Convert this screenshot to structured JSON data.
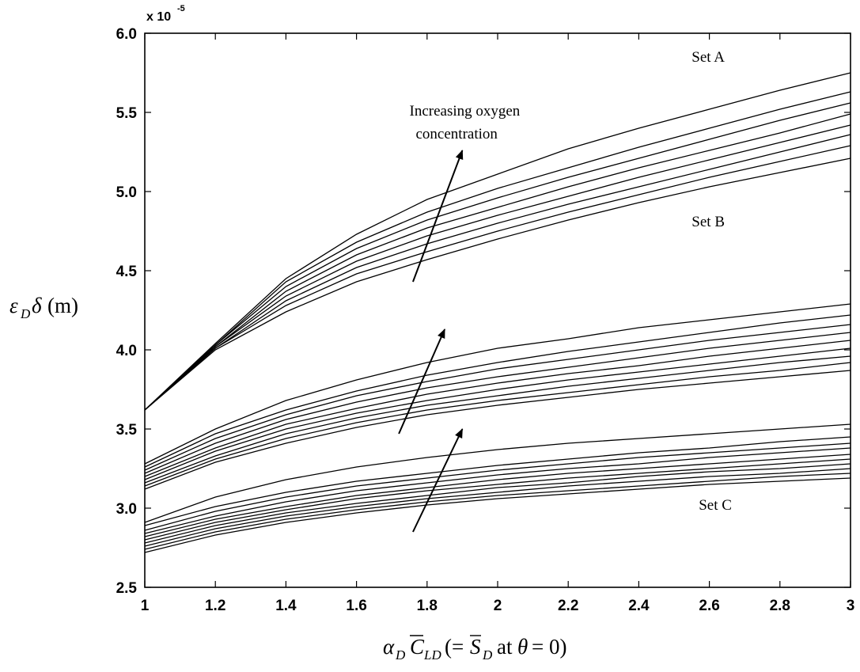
{
  "chart_data": {
    "type": "line",
    "xlim": [
      1,
      3
    ],
    "ylim": [
      2.5,
      6.0
    ],
    "y_scale_exponent": "x 10",
    "y_scale_exponent_power": "-5",
    "xticks": [
      "1",
      "1.2",
      "1.4",
      "1.6",
      "1.8",
      "2",
      "2.2",
      "2.4",
      "2.6",
      "2.8",
      "3"
    ],
    "yticks": [
      "2.5",
      "3.0",
      "3.5",
      "4.0",
      "4.5",
      "5.0",
      "5.5",
      "6.0"
    ],
    "grid": false,
    "legend": "none",
    "xlabel": "α_D C̄_LD (= S̄_D at θ = 0)",
    "ylabel": "ε_D δ (m)",
    "x": [
      1,
      1.2,
      1.4,
      1.6,
      1.8,
      2,
      2.2,
      2.4,
      2.6,
      2.8,
      3
    ],
    "groups": [
      {
        "label": "Set A",
        "series": [
          {
            "values": [
              3.62,
              4.0,
              4.24,
              4.43,
              4.57,
              4.7,
              4.82,
              4.93,
              5.03,
              5.12,
              5.21
            ]
          },
          {
            "values": [
              3.62,
              4.01,
              4.28,
              4.48,
              4.62,
              4.75,
              4.87,
              4.98,
              5.09,
              5.19,
              5.29
            ]
          },
          {
            "values": [
              3.62,
              4.01,
              4.31,
              4.52,
              4.67,
              4.8,
              4.92,
              5.03,
              5.14,
              5.25,
              5.36
            ]
          },
          {
            "values": [
              3.62,
              4.02,
              4.34,
              4.56,
              4.72,
              4.85,
              4.97,
              5.09,
              5.2,
              5.31,
              5.42
            ]
          },
          {
            "values": [
              3.62,
              4.02,
              4.37,
              4.6,
              4.77,
              4.9,
              5.03,
              5.15,
              5.26,
              5.37,
              5.49
            ]
          },
          {
            "values": [
              3.62,
              4.03,
              4.4,
              4.64,
              4.82,
              4.96,
              5.09,
              5.21,
              5.33,
              5.45,
              5.56
            ]
          },
          {
            "values": [
              3.62,
              4.03,
              4.43,
              4.68,
              4.87,
              5.02,
              5.15,
              5.28,
              5.4,
              5.52,
              5.63
            ]
          },
          {
            "values": [
              3.62,
              4.04,
              4.45,
              4.73,
              4.95,
              5.11,
              5.27,
              5.4,
              5.52,
              5.64,
              5.75
            ]
          }
        ]
      },
      {
        "label": "Set B",
        "series": [
          {
            "values": [
              3.12,
              3.29,
              3.41,
              3.51,
              3.59,
              3.65,
              3.7,
              3.75,
              3.79,
              3.83,
              3.87
            ]
          },
          {
            "values": [
              3.14,
              3.31,
              3.44,
              3.54,
              3.62,
              3.68,
              3.73,
              3.78,
              3.83,
              3.87,
              3.92
            ]
          },
          {
            "values": [
              3.16,
              3.33,
              3.47,
              3.57,
              3.65,
              3.71,
              3.77,
              3.82,
              3.87,
              3.92,
              3.96
            ]
          },
          {
            "values": [
              3.18,
              3.36,
              3.5,
              3.6,
              3.68,
              3.75,
              3.81,
              3.86,
              3.91,
              3.96,
              4.01
            ]
          },
          {
            "values": [
              3.2,
              3.38,
              3.53,
              3.63,
              3.72,
              3.79,
              3.85,
              3.9,
              3.96,
              4.01,
              4.06
            ]
          },
          {
            "values": [
              3.22,
              3.41,
              3.56,
              3.67,
              3.76,
              3.83,
              3.89,
              3.95,
              4.01,
              4.06,
              4.11
            ]
          },
          {
            "values": [
              3.24,
              3.44,
              3.59,
              3.71,
              3.8,
              3.88,
              3.94,
              4.0,
              4.06,
              4.11,
              4.16
            ]
          },
          {
            "values": [
              3.26,
              3.47,
              3.62,
              3.74,
              3.84,
              3.92,
              3.99,
              4.05,
              4.11,
              4.17,
              4.22
            ]
          },
          {
            "values": [
              3.28,
              3.5,
              3.68,
              3.81,
              3.92,
              4.01,
              4.07,
              4.14,
              4.19,
              4.24,
              4.29
            ]
          }
        ]
      },
      {
        "label": "Set C",
        "series": [
          {
            "values": [
              2.72,
              2.83,
              2.91,
              2.97,
              3.02,
              3.06,
              3.09,
              3.12,
              3.15,
              3.17,
              3.19
            ]
          },
          {
            "values": [
              2.74,
              2.85,
              2.93,
              2.99,
              3.04,
              3.08,
              3.11,
              3.14,
              3.17,
              3.2,
              3.22
            ]
          },
          {
            "values": [
              2.76,
              2.87,
              2.95,
              3.01,
              3.06,
              3.1,
              3.14,
              3.17,
              3.2,
              3.22,
              3.25
            ]
          },
          {
            "values": [
              2.78,
              2.89,
              2.97,
              3.03,
              3.08,
              3.13,
              3.16,
              3.2,
              3.23,
              3.25,
              3.28
            ]
          },
          {
            "values": [
              2.8,
              2.91,
              2.99,
              3.06,
              3.11,
              3.15,
              3.19,
              3.22,
              3.25,
              3.28,
              3.31
            ]
          },
          {
            "values": [
              2.82,
              2.93,
              3.01,
              3.08,
              3.13,
              3.18,
              3.22,
              3.25,
              3.28,
              3.31,
              3.34
            ]
          },
          {
            "values": [
              2.84,
              2.95,
              3.04,
              3.11,
              3.16,
              3.21,
              3.25,
              3.28,
              3.32,
              3.35,
              3.38
            ]
          },
          {
            "values": [
              2.86,
              2.98,
              3.07,
              3.14,
              3.19,
              3.24,
              3.28,
              3.32,
              3.35,
              3.38,
              3.41
            ]
          },
          {
            "values": [
              2.89,
              3.01,
              3.1,
              3.17,
              3.22,
              3.27,
              3.31,
              3.35,
              3.38,
              3.42,
              3.45
            ]
          },
          {
            "values": [
              2.91,
              3.07,
              3.18,
              3.26,
              3.32,
              3.37,
              3.41,
              3.44,
              3.47,
              3.5,
              3.53
            ]
          }
        ]
      }
    ],
    "annotations": [
      {
        "text": "Set A",
        "x": 2.55,
        "y": 5.82
      },
      {
        "text": "Set B",
        "x": 2.55,
        "y": 4.78
      },
      {
        "text": "Set C",
        "x": 2.57,
        "y": 2.99
      },
      {
        "lines": [
          "Increasing oxygen",
          "concentration"
        ],
        "x": 1.75,
        "y": 5.48
      }
    ],
    "arrows": [
      {
        "from": [
          1.76,
          4.43
        ],
        "to": [
          1.9,
          5.26
        ]
      },
      {
        "from": [
          1.72,
          3.47
        ],
        "to": [
          1.85,
          4.13
        ]
      },
      {
        "from": [
          1.76,
          2.85
        ],
        "to": [
          1.9,
          3.5
        ]
      }
    ]
  }
}
